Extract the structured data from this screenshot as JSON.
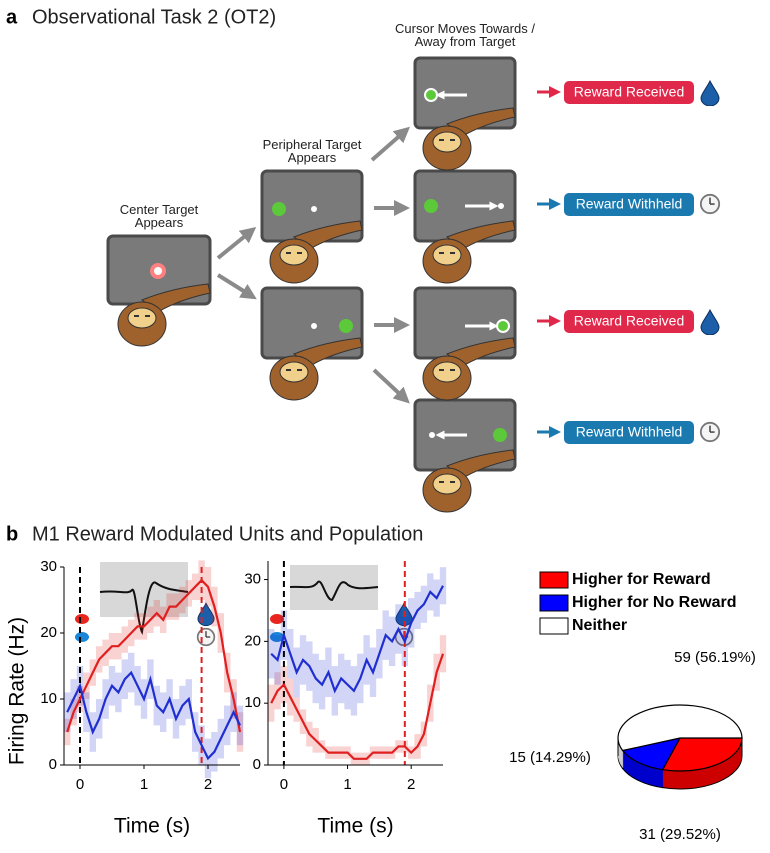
{
  "panel_a": {
    "label": "a",
    "title": "Observational Task 2 (OT2)",
    "stages": [
      "Center Target Appears",
      "Peripheral Target Appears",
      "Cursor Moves Towards / Away from Target"
    ],
    "outcomes": [
      "Reward Received",
      "Reward Withheld",
      "Reward Received",
      "Reward Withheld"
    ]
  },
  "panel_b": {
    "label": "b",
    "title": "M1 Reward Modulated Units and Population"
  },
  "chart_data": [
    {
      "type": "line",
      "ylabel": "Firing Rate (Hz)",
      "xlabel": "Time (s)",
      "x": [
        -0.2,
        -0.1,
        0,
        0.1,
        0.2,
        0.3,
        0.4,
        0.5,
        0.6,
        0.7,
        0.8,
        0.9,
        1.0,
        1.1,
        1.2,
        1.3,
        1.4,
        1.5,
        1.6,
        1.7,
        1.8,
        1.9,
        2.0,
        2.1,
        2.2,
        2.3,
        2.4,
        2.5
      ],
      "xlim": [
        -0.25,
        2.5
      ],
      "xticks": [
        0,
        1,
        2
      ],
      "ylim": [
        0,
        30
      ],
      "yticks": [
        0,
        10,
        20,
        30
      ],
      "event_lines": [
        {
          "x": 0,
          "color": "#000000"
        },
        {
          "x": 1.9,
          "color": "#e02020"
        }
      ],
      "series": [
        {
          "color": "#e02020",
          "values": [
            5,
            8,
            10,
            12,
            14,
            16,
            17,
            18,
            18,
            19,
            20,
            21,
            21,
            22,
            23,
            22,
            24,
            24,
            25,
            26,
            27,
            28,
            27,
            24,
            20,
            14,
            10,
            5
          ],
          "errors": [
            2,
            2,
            2,
            2,
            2,
            2,
            2,
            2,
            2,
            2,
            2,
            2,
            2,
            2,
            2,
            2,
            2,
            2,
            2,
            2,
            2,
            3,
            3,
            3,
            3,
            3,
            3,
            3
          ]
        },
        {
          "color": "#1f2fd0",
          "values": [
            8,
            10,
            12,
            8,
            5,
            7,
            10,
            12,
            11,
            13,
            14,
            12,
            10,
            13,
            9,
            8,
            10,
            7,
            9,
            10,
            5,
            3,
            1,
            2,
            4,
            6,
            8,
            6
          ],
          "errors": [
            3,
            3,
            3,
            3,
            3,
            3,
            3,
            3,
            3,
            3,
            3,
            3,
            3,
            3,
            3,
            3,
            3,
            3,
            3,
            3,
            3,
            3,
            3,
            3,
            3,
            3,
            3,
            3
          ]
        }
      ]
    },
    {
      "type": "line",
      "xlabel": "Time (s)",
      "x": [
        -0.2,
        -0.1,
        0,
        0.1,
        0.2,
        0.3,
        0.4,
        0.5,
        0.6,
        0.7,
        0.8,
        0.9,
        1.0,
        1.1,
        1.2,
        1.3,
        1.4,
        1.5,
        1.6,
        1.7,
        1.8,
        1.9,
        2.0,
        2.1,
        2.2,
        2.3,
        2.4,
        2.5
      ],
      "xlim": [
        -0.25,
        2.5
      ],
      "xticks": [
        0,
        1,
        2
      ],
      "ylim": [
        0,
        33
      ],
      "yticks": [
        0,
        10,
        20,
        30
      ],
      "event_lines": [
        {
          "x": 0,
          "color": "#000000"
        },
        {
          "x": 1.9,
          "color": "#e02020"
        }
      ],
      "series": [
        {
          "color": "#e02020",
          "values": [
            10,
            12,
            13,
            11,
            9,
            7,
            5,
            4,
            3,
            2,
            2,
            2,
            2,
            1,
            1,
            1,
            2,
            2,
            2,
            2,
            3,
            3,
            2,
            3,
            5,
            10,
            15,
            18
          ],
          "errors": [
            3,
            3,
            3,
            3,
            2,
            2,
            2,
            2,
            1,
            1,
            1,
            1,
            1,
            1,
            1,
            1,
            1,
            1,
            1,
            1,
            1,
            1,
            1,
            2,
            2,
            3,
            3,
            3
          ]
        },
        {
          "color": "#1f2fd0",
          "values": [
            18,
            17,
            21,
            18,
            15,
            17,
            16,
            14,
            13,
            15,
            12,
            14,
            13,
            12,
            14,
            17,
            15,
            18,
            21,
            20,
            22,
            20,
            23,
            25,
            26,
            28,
            27,
            29
          ],
          "errors": [
            4,
            4,
            4,
            4,
            4,
            4,
            4,
            4,
            4,
            4,
            4,
            4,
            4,
            4,
            4,
            4,
            4,
            4,
            4,
            4,
            4,
            4,
            4,
            3,
            3,
            3,
            3,
            3
          ]
        }
      ]
    },
    {
      "type": "pie",
      "categories": [
        "Higher for Reward",
        "Higher for No Reward",
        "Neither"
      ],
      "values": [
        31,
        15,
        59
      ],
      "value_labels": [
        "31 (29.52%)",
        "15 (14.29%)",
        "59 (56.19%)"
      ],
      "colors": [
        "#ff0000",
        "#0000ff",
        "#ffffff"
      ]
    }
  ]
}
